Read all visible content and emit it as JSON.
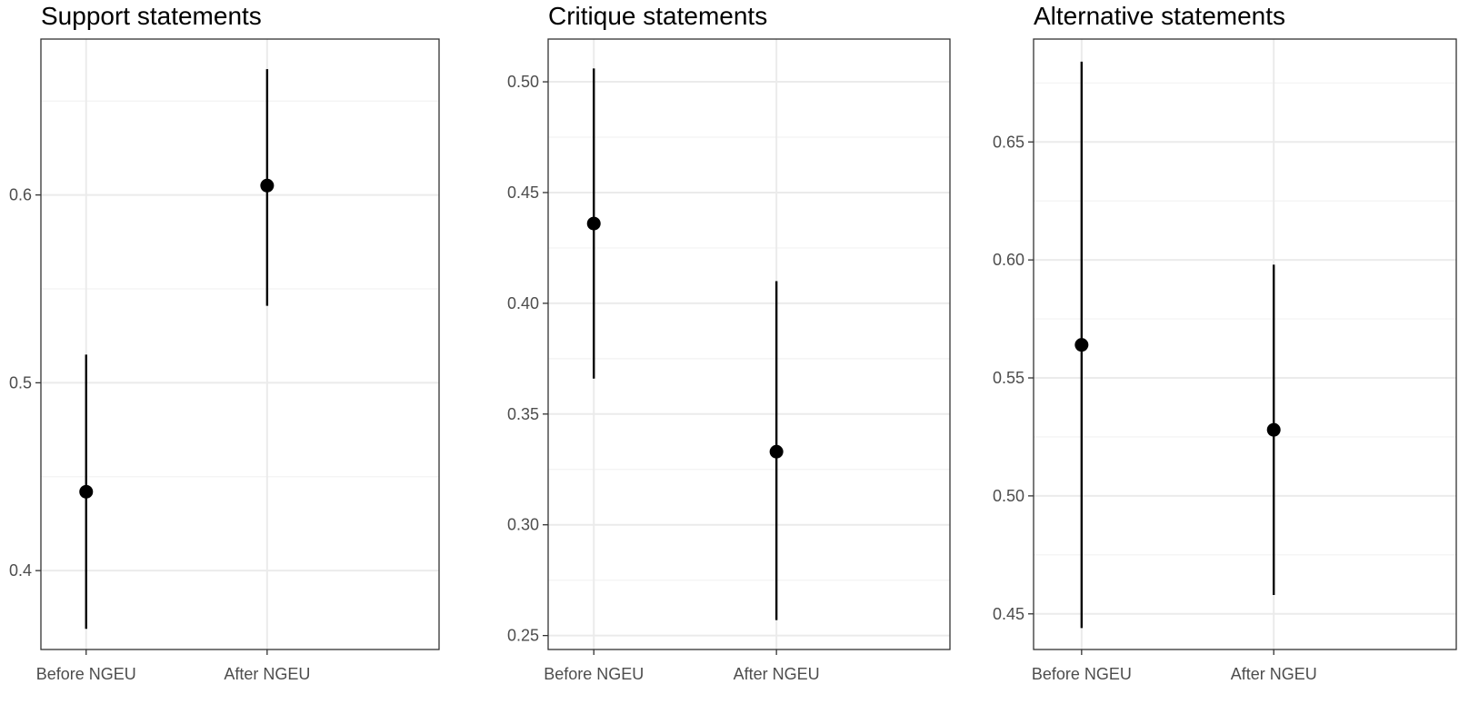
{
  "chart_data": [
    {
      "type": "scatter",
      "title": "Support statements",
      "xlabel": "",
      "ylabel": "",
      "categories": [
        "Before NGEU",
        "After NGEU"
      ],
      "values": [
        0.442,
        0.605
      ],
      "lower": [
        0.369,
        0.541
      ],
      "upper": [
        0.515,
        0.667
      ],
      "ylim": [
        0.358,
        0.683
      ],
      "yticks": [
        0.4,
        0.5,
        0.6
      ],
      "ytick_labels": [
        "0.4",
        "0.5",
        "0.6"
      ],
      "grid": true,
      "error_bars": true
    },
    {
      "type": "scatter",
      "title": "Critique statements",
      "xlabel": "",
      "ylabel": "",
      "categories": [
        "Before NGEU",
        "After NGEU"
      ],
      "values": [
        0.436,
        0.333
      ],
      "lower": [
        0.366,
        0.257
      ],
      "upper": [
        0.506,
        0.41
      ],
      "ylim": [
        0.2437,
        0.5193
      ],
      "yticks": [
        0.25,
        0.3,
        0.35,
        0.4,
        0.45,
        0.5
      ],
      "ytick_labels": [
        "0.25",
        "0.30",
        "0.35",
        "0.40",
        "0.45",
        "0.50"
      ],
      "grid": true,
      "error_bars": true
    },
    {
      "type": "scatter",
      "title": "Alternative statements",
      "xlabel": "",
      "ylabel": "",
      "categories": [
        "Before NGEU",
        "After NGEU"
      ],
      "values": [
        0.564,
        0.528
      ],
      "lower": [
        0.444,
        0.458
      ],
      "upper": [
        0.684,
        0.598
      ],
      "ylim": [
        0.4349,
        0.6936
      ],
      "yticks": [
        0.45,
        0.5,
        0.55,
        0.6,
        0.65
      ],
      "ytick_labels": [
        "0.45",
        "0.50",
        "0.55",
        "0.60",
        "0.65"
      ],
      "grid": true,
      "error_bars": true
    }
  ]
}
